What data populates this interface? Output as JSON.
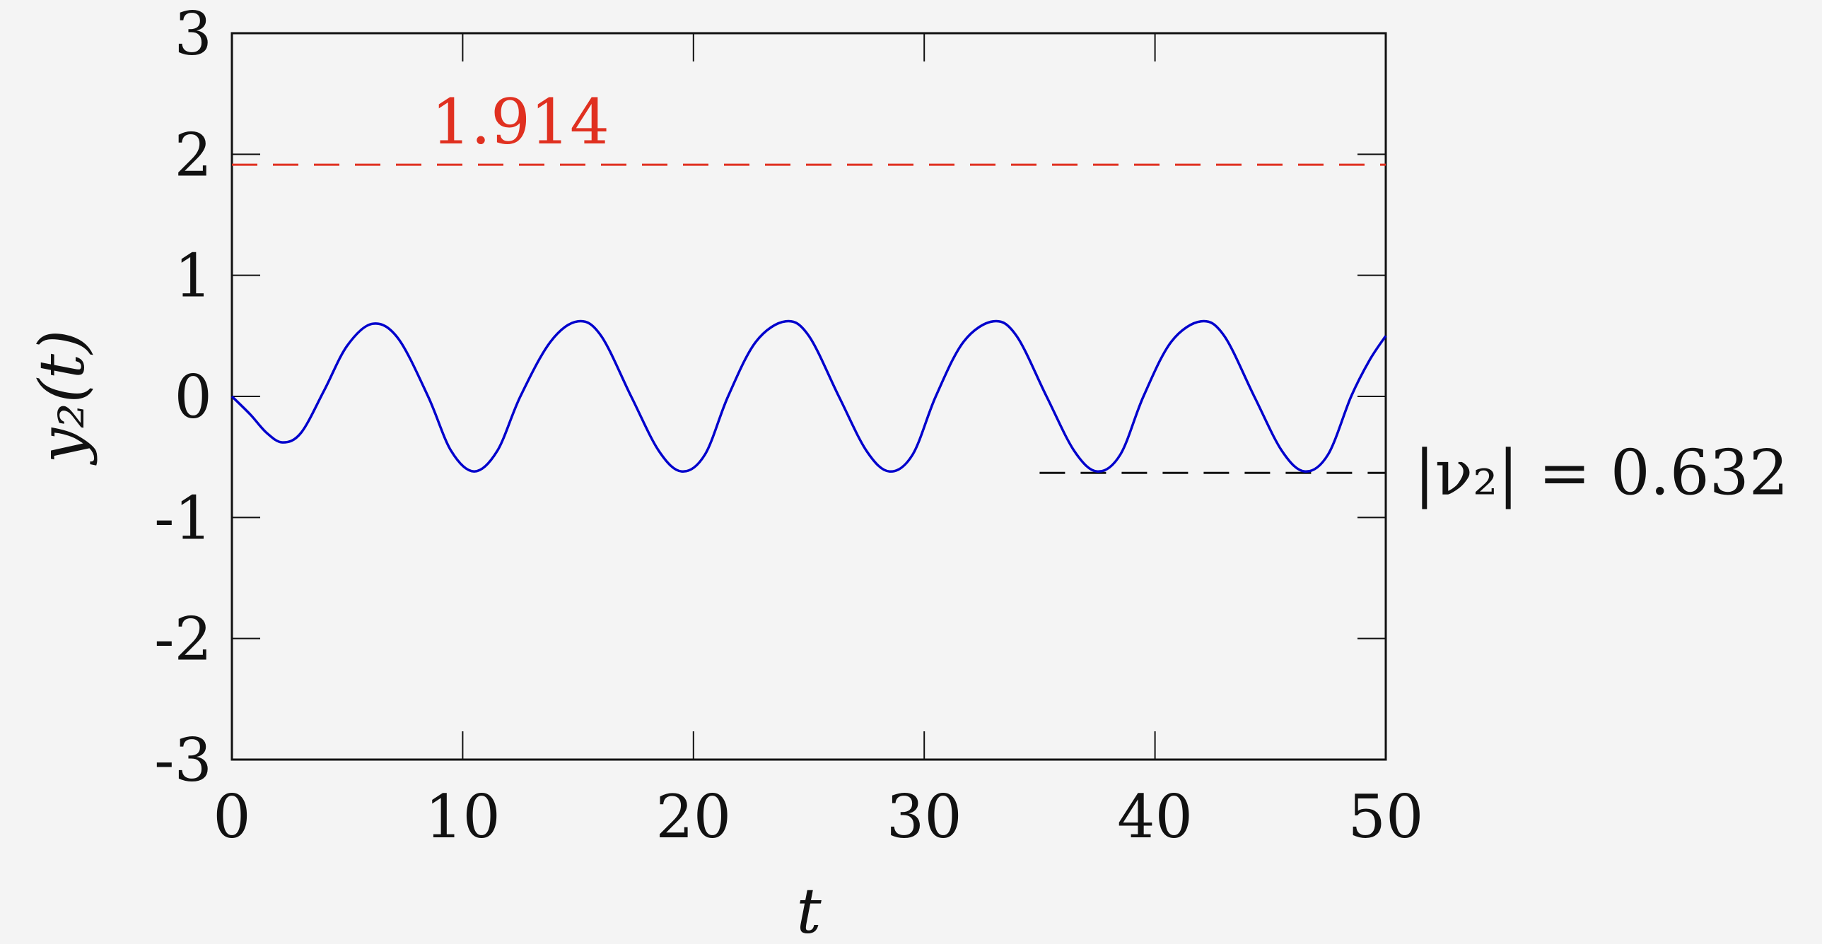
{
  "chart_data": {
    "type": "line",
    "xlabel": "t",
    "ylabel": "y₂(t)",
    "xlim": [
      0,
      50
    ],
    "ylim": [
      -3,
      3
    ],
    "xticks": [
      "0",
      "10",
      "20",
      "30",
      "40",
      "50"
    ],
    "yticks": [
      "3",
      "2",
      "1",
      "0",
      "-1",
      "-2",
      "-3"
    ],
    "grid": false,
    "colors": {
      "series": "#0000cc",
      "upper_line": "#e03020",
      "lower_line": "#111111"
    },
    "series": [
      {
        "x": [
          0,
          0.8,
          1.5,
          2.2,
          3,
          4,
          5,
          6.1,
          7.2,
          8.5,
          9.5,
          10.5,
          11.5,
          12.5,
          13.8,
          15,
          16,
          17.3,
          18.5,
          19.5,
          20.5,
          21.5,
          22.7,
          24,
          25,
          26.3,
          27.5,
          28.5,
          29.5,
          30.5,
          31.7,
          33,
          34,
          35.3,
          36.5,
          37.5,
          38.5,
          39.5,
          40.7,
          42,
          43,
          44.3,
          45.5,
          46.5,
          47.5,
          48.5,
          49.3,
          50
        ],
        "y": [
          0,
          -0.15,
          -0.3,
          -0.38,
          -0.3,
          0.05,
          0.42,
          0.6,
          0.48,
          0.0,
          -0.45,
          -0.62,
          -0.45,
          0.0,
          0.45,
          0.62,
          0.5,
          0.0,
          -0.45,
          -0.62,
          -0.48,
          0.0,
          0.45,
          0.62,
          0.5,
          0.0,
          -0.45,
          -0.62,
          -0.48,
          0.0,
          0.45,
          0.62,
          0.5,
          0.0,
          -0.45,
          -0.62,
          -0.48,
          0.0,
          0.45,
          0.62,
          0.5,
          0.0,
          -0.45,
          -0.62,
          -0.48,
          0.0,
          0.3,
          0.5
        ]
      }
    ],
    "upper_line": {
      "y": 1.914,
      "x": [
        0,
        50
      ],
      "label": "1.914"
    },
    "lower_line": {
      "y": -0.632,
      "x": [
        35,
        50
      ],
      "label": "|ν₂| = 0.632"
    }
  }
}
